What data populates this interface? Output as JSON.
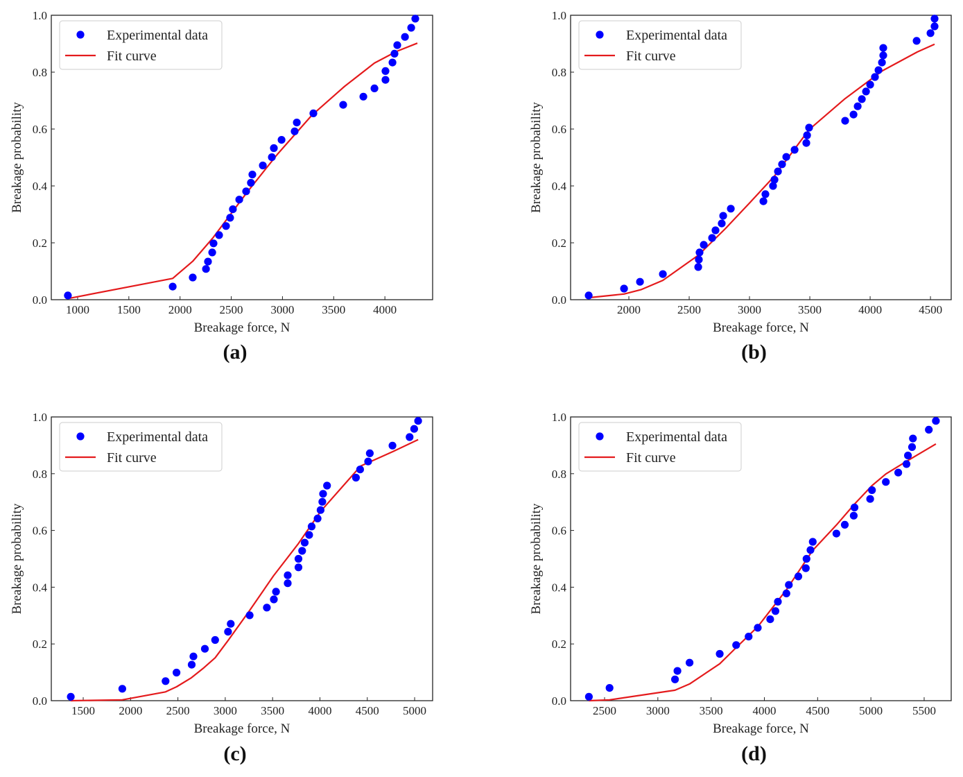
{
  "legend": {
    "points_label": "Experimental data",
    "line_label": "Fit curve"
  },
  "colors": {
    "points": "#0000ff",
    "line": "#e41a1c",
    "axes": "#222222",
    "legend_border": "#cccccc"
  },
  "chart_data": [
    {
      "panel": "(a)",
      "type": "scatter",
      "xlabel": "Breakage force, N",
      "ylabel": "Breakage probability",
      "xlim": [
        743,
        4466
      ],
      "ylim": [
        0.0,
        1.0
      ],
      "xticks": [
        1000,
        1500,
        2000,
        2500,
        3000,
        3500,
        4000
      ],
      "yticks": [
        0.0,
        0.2,
        0.4,
        0.6,
        0.8,
        1.0
      ],
      "legend_position": "top-left",
      "grid": false,
      "series": [
        {
          "name": "Experimental data",
          "kind": "scatter",
          "x": [
            905,
            1928,
            2124,
            2253,
            2273,
            2314,
            2327,
            2381,
            2449,
            2489,
            2516,
            2578,
            2645,
            2692,
            2706,
            2808,
            2896,
            2916,
            2991,
            3119,
            3140,
            3302,
            3593,
            3790,
            3898,
            4006,
            4006,
            4074,
            4094,
            4121,
            4196,
            4257,
            4297
          ],
          "y": [
            0.015,
            0.046,
            0.078,
            0.108,
            0.134,
            0.166,
            0.198,
            0.227,
            0.259,
            0.288,
            0.318,
            0.352,
            0.381,
            0.411,
            0.44,
            0.472,
            0.501,
            0.533,
            0.562,
            0.592,
            0.623,
            0.655,
            0.685,
            0.714,
            0.743,
            0.773,
            0.804,
            0.834,
            0.865,
            0.895,
            0.924,
            0.956,
            0.988
          ]
        },
        {
          "name": "Fit curve",
          "kind": "line",
          "x": [
            922,
            1928,
            2124,
            2320,
            2659,
            2950,
            3288,
            3606,
            3898,
            4114,
            4317
          ],
          "y": [
            0.005,
            0.075,
            0.135,
            0.217,
            0.38,
            0.511,
            0.649,
            0.75,
            0.832,
            0.873,
            0.902
          ]
        }
      ]
    },
    {
      "panel": "(b)",
      "type": "scatter",
      "xlabel": "Breakage force, N",
      "ylabel": "Breakage probability",
      "xlim": [
        1517,
        4672
      ],
      "ylim": [
        0.0,
        1.0
      ],
      "xticks": [
        2000,
        2500,
        3000,
        3500,
        4000,
        4500
      ],
      "yticks": [
        0.0,
        0.2,
        0.4,
        0.6,
        0.8,
        1.0
      ],
      "legend_position": "top-left",
      "grid": false,
      "series": [
        {
          "name": "Experimental data",
          "kind": "scatter",
          "x": [
            1667,
            1960,
            2092,
            2282,
            2575,
            2580,
            2586,
            2621,
            2690,
            2718,
            2770,
            2782,
            2845,
            3115,
            3132,
            3195,
            3207,
            3236,
            3270,
            3305,
            3374,
            3471,
            3477,
            3494,
            3793,
            3862,
            3897,
            3931,
            3966,
            4000,
            4040,
            4069,
            4098,
            4109,
            4109,
            4385,
            4500,
            4534,
            4534
          ],
          "y": [
            0.015,
            0.039,
            0.063,
            0.09,
            0.115,
            0.141,
            0.166,
            0.193,
            0.217,
            0.244,
            0.268,
            0.295,
            0.32,
            0.346,
            0.371,
            0.4,
            0.422,
            0.451,
            0.476,
            0.502,
            0.527,
            0.551,
            0.578,
            0.605,
            0.629,
            0.651,
            0.68,
            0.705,
            0.732,
            0.756,
            0.783,
            0.807,
            0.834,
            0.859,
            0.885,
            0.91,
            0.937,
            0.961,
            0.988
          ]
        },
        {
          "name": "Fit curve",
          "kind": "line",
          "x": [
            1667,
            1960,
            2100,
            2282,
            2575,
            2800,
            3000,
            3207,
            3494,
            3793,
            4103,
            4391,
            4534
          ],
          "y": [
            0.007,
            0.02,
            0.035,
            0.068,
            0.156,
            0.25,
            0.34,
            0.435,
            0.598,
            0.707,
            0.805,
            0.871,
            0.898
          ]
        }
      ]
    },
    {
      "panel": "(c)",
      "type": "scatter",
      "xlabel": "Breakage force, N",
      "ylabel": "Breakage probability",
      "xlim": [
        1163,
        5190
      ],
      "ylim": [
        0.0,
        1.0
      ],
      "xticks": [
        1500,
        2000,
        2500,
        3000,
        3500,
        4000,
        4500,
        5000
      ],
      "yticks": [
        0.0,
        0.2,
        0.4,
        0.6,
        0.8,
        1.0
      ],
      "legend_position": "top-left",
      "grid": false,
      "series": [
        {
          "name": "Experimental data",
          "kind": "scatter",
          "x": [
            1369,
            1913,
            2370,
            2485,
            2646,
            2664,
            2785,
            2893,
            3029,
            3058,
            3258,
            3439,
            3513,
            3536,
            3660,
            3660,
            3773,
            3773,
            3812,
            3839,
            3886,
            3912,
            3975,
            4007,
            4025,
            4033,
            4075,
            4380,
            4424,
            4509,
            4527,
            4766,
            4947,
            4995,
            5037
          ],
          "y": [
            0.014,
            0.042,
            0.069,
            0.099,
            0.127,
            0.156,
            0.183,
            0.214,
            0.243,
            0.271,
            0.301,
            0.328,
            0.357,
            0.384,
            0.414,
            0.442,
            0.47,
            0.5,
            0.528,
            0.557,
            0.584,
            0.614,
            0.642,
            0.672,
            0.701,
            0.729,
            0.758,
            0.786,
            0.815,
            0.843,
            0.872,
            0.899,
            0.929,
            0.958,
            0.986
          ]
        },
        {
          "name": "Fit curve",
          "kind": "line",
          "x": [
            1369,
            1913,
            2370,
            2485,
            2643,
            2774,
            2893,
            3029,
            3258,
            3510,
            3773,
            4009,
            4430,
            4771,
            5037
          ],
          "y": [
            0.0,
            0.003,
            0.031,
            0.049,
            0.081,
            0.116,
            0.151,
            0.212,
            0.318,
            0.44,
            0.554,
            0.668,
            0.827,
            0.878,
            0.92
          ]
        }
      ]
    },
    {
      "panel": "(d)",
      "type": "scatter",
      "xlabel": "Breakage force, N",
      "ylabel": "Breakage probability",
      "xlim": [
        2181,
        5754
      ],
      "ylim": [
        0.0,
        1.0
      ],
      "xticks": [
        2500,
        3000,
        3500,
        4000,
        4500,
        5000,
        5500
      ],
      "yticks": [
        0.0,
        0.2,
        0.4,
        0.6,
        0.8,
        1.0
      ],
      "legend_position": "top-left",
      "grid": false,
      "series": [
        {
          "name": "Experimental data",
          "kind": "scatter",
          "x": [
            2353,
            2547,
            3161,
            3184,
            3298,
            3581,
            3735,
            3852,
            3938,
            4055,
            4104,
            4127,
            4207,
            4230,
            4319,
            4389,
            4396,
            4433,
            4454,
            4676,
            4755,
            4839,
            4846,
            4993,
            5010,
            5140,
            5257,
            5334,
            5348,
            5386,
            5395,
            5544,
            5610
          ],
          "y": [
            0.014,
            0.045,
            0.075,
            0.105,
            0.134,
            0.165,
            0.196,
            0.226,
            0.257,
            0.287,
            0.316,
            0.349,
            0.378,
            0.408,
            0.438,
            0.467,
            0.5,
            0.531,
            0.56,
            0.589,
            0.62,
            0.652,
            0.681,
            0.711,
            0.742,
            0.771,
            0.804,
            0.834,
            0.864,
            0.894,
            0.924,
            0.955,
            0.986
          ]
        },
        {
          "name": "Fit curve",
          "kind": "line",
          "x": [
            2353,
            2547,
            3161,
            3298,
            3581,
            3735,
            3938,
            4207,
            4454,
            4676,
            4846,
            5010,
            5140,
            5336,
            5610
          ],
          "y": [
            0.0,
            0.003,
            0.037,
            0.059,
            0.13,
            0.187,
            0.261,
            0.391,
            0.53,
            0.619,
            0.693,
            0.758,
            0.799,
            0.844,
            0.905
          ]
        }
      ]
    }
  ]
}
